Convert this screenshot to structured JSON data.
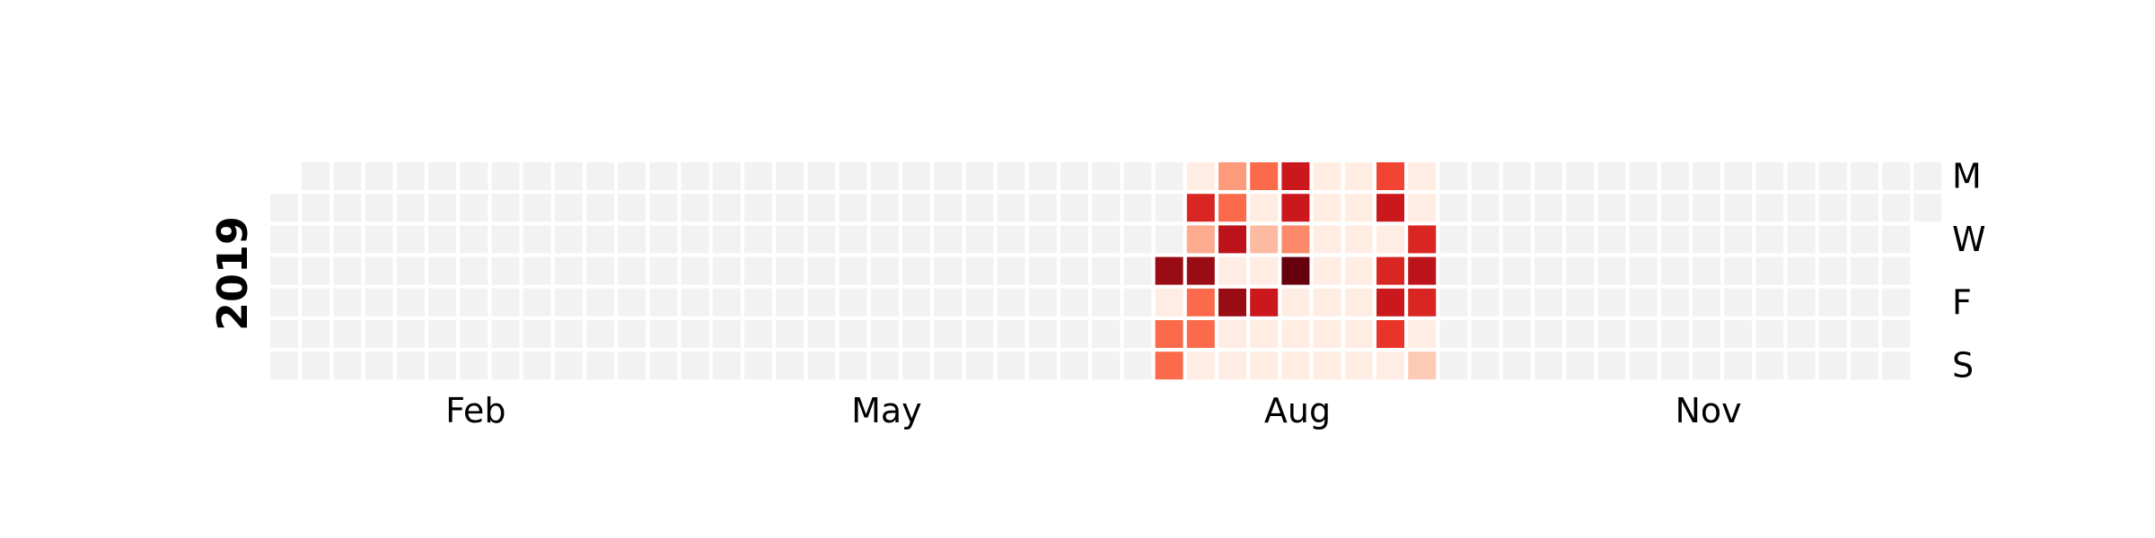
{
  "chart_data": {
    "type": "heatmap",
    "subtype": "calendar",
    "title": "",
    "year_label": "2019",
    "colormap": "Reds",
    "vmin": 0,
    "vmax": 10,
    "empty_color": "#f2f2f2",
    "cell_border_color": "#ffffff",
    "grid": false,
    "x_tick_labels": [
      {
        "label": "Feb",
        "week": 6.5
      },
      {
        "label": "May",
        "week": 19.5
      },
      {
        "label": "Aug",
        "week": 32.5
      },
      {
        "label": "Nov",
        "week": 45.5
      }
    ],
    "y_tick_labels": [
      {
        "label": "M",
        "day": 0
      },
      {
        "label": "W",
        "day": 2
      },
      {
        "label": "F",
        "day": 4
      },
      {
        "label": "S",
        "day": 6
      }
    ],
    "first_weekday_of_year": 1,
    "days_in_year": 365,
    "active_period": {
      "start_week": 28,
      "end_week": 36
    },
    "values_by_week": [
      {
        "week": 28,
        "days": [
          null,
          null,
          null,
          9,
          0.5,
          5,
          5
        ]
      },
      {
        "week": 29,
        "days": [
          0.5,
          7,
          3,
          9,
          5,
          5,
          0.5
        ]
      },
      {
        "week": 30,
        "days": [
          3.5,
          5,
          8,
          0.5,
          9,
          0.5,
          0.5
        ]
      },
      {
        "week": 31,
        "days": [
          5,
          0.5,
          2.5,
          0.5,
          7.5,
          0.5,
          0.5
        ]
      },
      {
        "week": 32,
        "days": [
          7.5,
          7.5,
          4,
          10,
          0.5,
          0.5,
          0.5
        ]
      },
      {
        "week": 33,
        "days": [
          0.5,
          0.5,
          0.5,
          0.5,
          0.5,
          0.5,
          0.5
        ]
      },
      {
        "week": 34,
        "days": [
          0.5,
          0.5,
          0.5,
          0.5,
          0.5,
          0.5,
          0.5
        ]
      },
      {
        "week": 35,
        "days": [
          6,
          7.5,
          0.5,
          7,
          7.5,
          6.5,
          0.5
        ]
      },
      {
        "week": 36,
        "days": [
          0.5,
          0.5,
          7,
          8,
          7,
          0.5,
          2
        ]
      }
    ]
  }
}
